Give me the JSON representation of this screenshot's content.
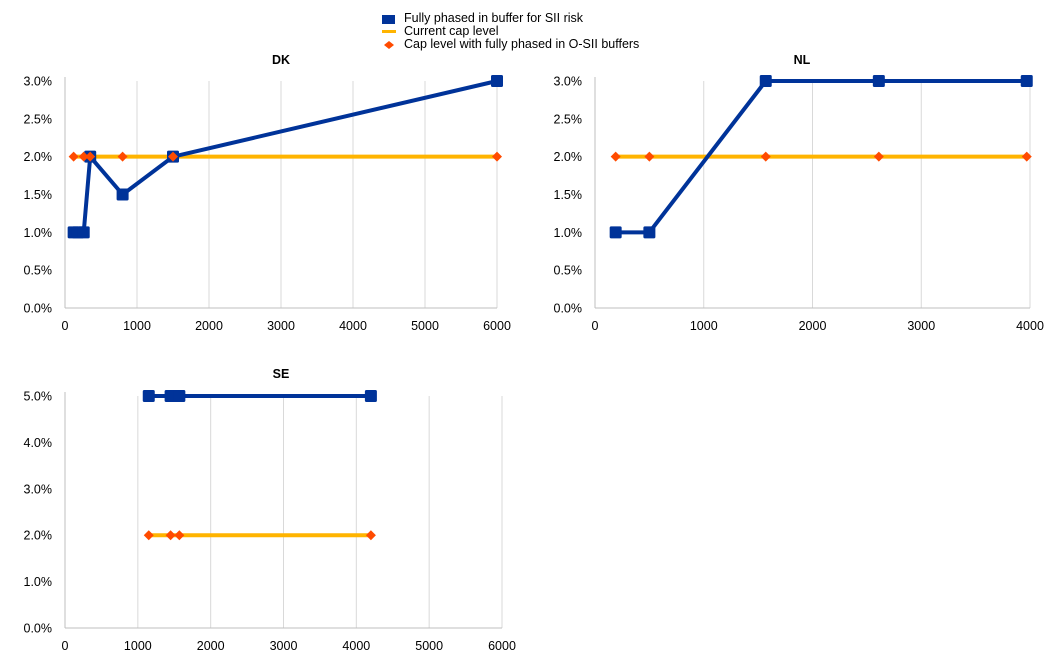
{
  "legend": {
    "items": [
      {
        "label": "Fully phased in buffer for SII risk",
        "color": "#003399",
        "marker": "square"
      },
      {
        "label": "Current cap level",
        "color": "#FFB400",
        "marker": "line"
      },
      {
        "label": "Cap level with fully phased in O-SII buffers",
        "color": "#FF4B00",
        "marker": "diamond"
      }
    ]
  },
  "chart_data": [
    {
      "type": "line",
      "title": "DK",
      "xlim": [
        0,
        6000
      ],
      "xticks": [
        "0",
        "1000",
        "2000",
        "3000",
        "4000",
        "5000",
        "6000"
      ],
      "ylim": [
        0,
        0.03
      ],
      "yticks": [
        "0.0%",
        "0.5%",
        "1.0%",
        "1.5%",
        "2.0%",
        "2.5%",
        "3.0%"
      ],
      "grid": "vertical",
      "series": [
        {
          "name": "Fully phased in buffer for SII risk",
          "color": "#003399",
          "x": [
            120,
            180,
            260,
            350,
            800,
            1500,
            6000
          ],
          "y": [
            0.01,
            0.01,
            0.01,
            0.02,
            0.015,
            0.02,
            0.03
          ]
        },
        {
          "name": "Current cap level",
          "color": "#FFB400",
          "x": [
            120,
            260,
            350,
            800,
            1500,
            6000
          ],
          "y": [
            0.02,
            0.02,
            0.02,
            0.02,
            0.02,
            0.02
          ]
        },
        {
          "name": "Cap level with fully phased in O-SII buffers",
          "color": "#FF4B00",
          "x": [
            120,
            260,
            350,
            800,
            1500,
            6000
          ],
          "y": [
            0.02,
            0.02,
            0.02,
            0.02,
            0.02,
            0.02
          ]
        }
      ]
    },
    {
      "type": "line",
      "title": "NL",
      "xlim": [
        0,
        4000
      ],
      "xticks": [
        "0",
        "1000",
        "2000",
        "3000",
        "4000"
      ],
      "ylim": [
        0,
        0.03
      ],
      "yticks": [
        "0.0%",
        "0.5%",
        "1.0%",
        "1.5%",
        "2.0%",
        "2.5%",
        "3.0%"
      ],
      "grid": "vertical",
      "series": [
        {
          "name": "Fully phased in buffer for SII risk",
          "color": "#003399",
          "x": [
            190,
            500,
            1570,
            2610,
            3970
          ],
          "y": [
            0.01,
            0.01,
            0.03,
            0.03,
            0.03
          ]
        },
        {
          "name": "Current cap level",
          "color": "#FFB400",
          "x": [
            190,
            500,
            1570,
            2610,
            3970
          ],
          "y": [
            0.02,
            0.02,
            0.02,
            0.02,
            0.02
          ]
        },
        {
          "name": "Cap level with fully phased in O-SII buffers",
          "color": "#FF4B00",
          "x": [
            190,
            500,
            1570,
            2610,
            3970
          ],
          "y": [
            0.02,
            0.02,
            0.02,
            0.02,
            0.02
          ]
        }
      ]
    },
    {
      "type": "line",
      "title": "SE",
      "xlim": [
        0,
        6000
      ],
      "xticks": [
        "0",
        "1000",
        "2000",
        "3000",
        "4000",
        "5000",
        "6000"
      ],
      "ylim": [
        0,
        0.05
      ],
      "yticks": [
        "0.0%",
        "1.0%",
        "2.0%",
        "3.0%",
        "4.0%",
        "5.0%"
      ],
      "grid": "vertical",
      "series": [
        {
          "name": "Fully phased in buffer for SII risk",
          "color": "#003399",
          "x": [
            1150,
            1450,
            1570,
            4200
          ],
          "y": [
            0.05,
            0.05,
            0.05,
            0.05
          ]
        },
        {
          "name": "Current cap level",
          "color": "#FFB400",
          "x": [
            1150,
            1450,
            1570,
            4200
          ],
          "y": [
            0.02,
            0.02,
            0.02,
            0.02
          ]
        },
        {
          "name": "Cap level with fully phased in O-SII buffers",
          "color": "#FF4B00",
          "x": [
            1150,
            1450,
            1570,
            4200
          ],
          "y": [
            0.02,
            0.02,
            0.02,
            0.02
          ]
        }
      ]
    }
  ]
}
